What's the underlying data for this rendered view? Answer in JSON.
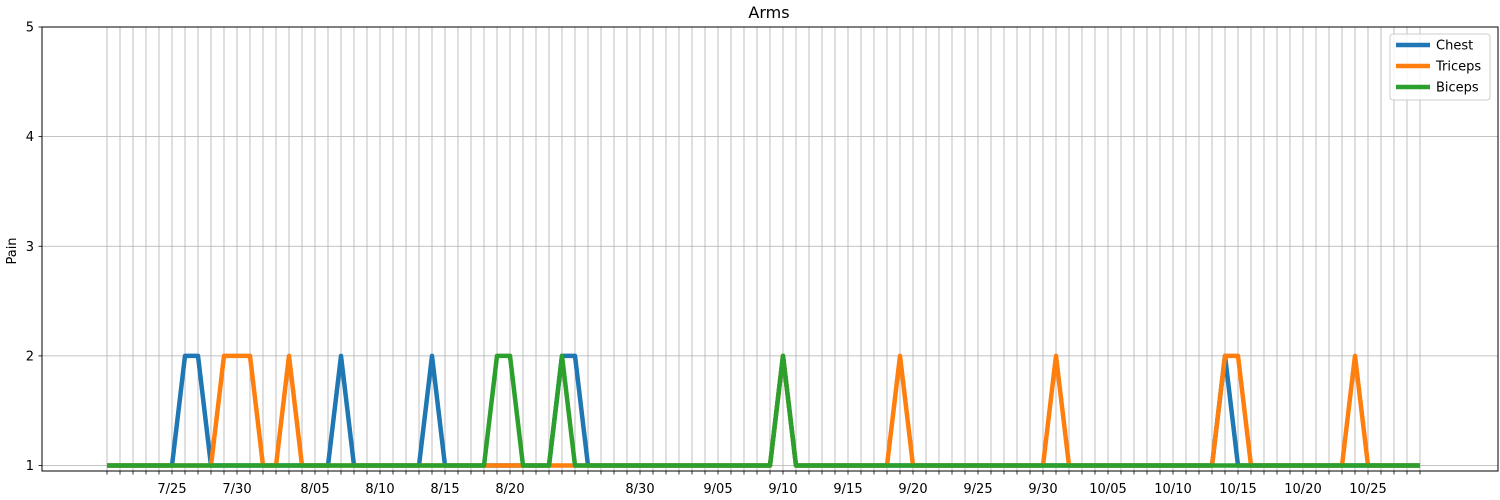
{
  "chart_data": {
    "type": "line",
    "title": "Arms",
    "xlabel": "",
    "ylabel": "Pain",
    "ylim": [
      0.95,
      5
    ],
    "yticks": [
      1,
      2,
      3,
      4,
      5
    ],
    "xlim": [
      "2024-07-15",
      "2024-11-04"
    ],
    "year": 2024,
    "x_start": "2024-07-20",
    "x_end": "2024-10-29",
    "xticks": [
      {
        "date": "2024-07-25",
        "label": "7/25"
      },
      {
        "date": "2024-07-30",
        "label": "7/30"
      },
      {
        "date": "2024-08-05",
        "label": "8/05"
      },
      {
        "date": "2024-08-10",
        "label": "8/10"
      },
      {
        "date": "2024-08-15",
        "label": "8/15"
      },
      {
        "date": "2024-08-20",
        "label": "8/20"
      },
      {
        "date": "2024-08-30",
        "label": "8/30"
      },
      {
        "date": "2024-09-05",
        "label": "9/05"
      },
      {
        "date": "2024-09-10",
        "label": "9/10"
      },
      {
        "date": "2024-09-15",
        "label": "9/15"
      },
      {
        "date": "2024-09-20",
        "label": "9/20"
      },
      {
        "date": "2024-09-25",
        "label": "9/25"
      },
      {
        "date": "2024-09-30",
        "label": "9/30"
      },
      {
        "date": "2024-10-05",
        "label": "10/05"
      },
      {
        "date": "2024-10-10",
        "label": "10/10"
      },
      {
        "date": "2024-10-15",
        "label": "10/15"
      },
      {
        "date": "2024-10-20",
        "label": "10/20"
      },
      {
        "date": "2024-10-25",
        "label": "10/25"
      }
    ],
    "grid": true,
    "legend_position": "top-right",
    "series": [
      {
        "name": "Chest",
        "color": "#1f77b4",
        "peaks": [
          {
            "dates": [
              "2024-07-26",
              "2024-07-27"
            ],
            "value": 2
          },
          {
            "dates": [
              "2024-08-07"
            ],
            "value": 2
          },
          {
            "dates": [
              "2024-08-14"
            ],
            "value": 2
          },
          {
            "dates": [
              "2024-08-24",
              "2024-08-25"
            ],
            "value": 2
          },
          {
            "dates": [
              "2024-09-10"
            ],
            "value": 2
          },
          {
            "dates": [
              "2024-10-14"
            ],
            "value": 2
          }
        ]
      },
      {
        "name": "Triceps",
        "color": "#ff7f0e",
        "peaks": [
          {
            "dates": [
              "2024-07-29",
              "2024-07-30",
              "2024-07-31"
            ],
            "value": 2
          },
          {
            "dates": [
              "2024-08-03"
            ],
            "value": 2
          },
          {
            "dates": [
              "2024-09-10"
            ],
            "value": 2
          },
          {
            "dates": [
              "2024-09-19"
            ],
            "value": 2
          },
          {
            "dates": [
              "2024-10-01"
            ],
            "value": 2
          },
          {
            "dates": [
              "2024-10-14",
              "2024-10-15"
            ],
            "value": 2
          },
          {
            "dates": [
              "2024-10-24"
            ],
            "value": 2
          }
        ]
      },
      {
        "name": "Biceps",
        "color": "#2ca02c",
        "peaks": [
          {
            "dates": [
              "2024-08-19",
              "2024-08-20"
            ],
            "value": 2
          },
          {
            "dates": [
              "2024-08-24"
            ],
            "value": 2
          },
          {
            "dates": [
              "2024-09-10"
            ],
            "value": 2
          }
        ]
      }
    ]
  }
}
